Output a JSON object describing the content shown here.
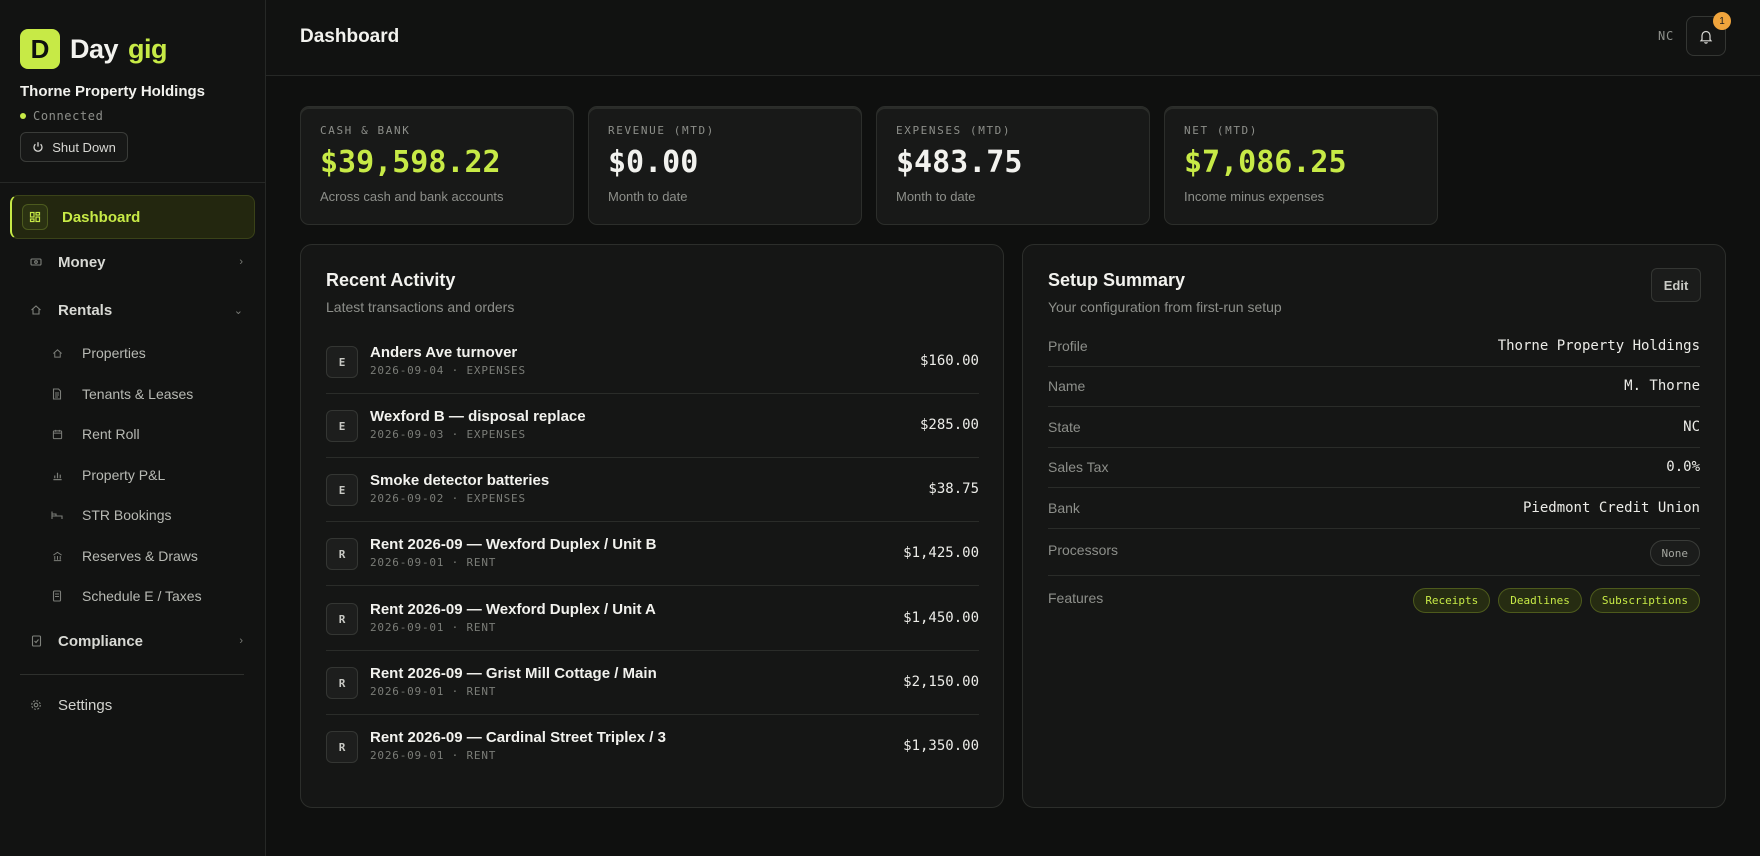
{
  "brand": {
    "logo_letter": "D",
    "name_part1": "Day",
    "name_part2": "gig",
    "accent_color": "#c7ea46"
  },
  "org": {
    "name": "Thorne Property Holdings",
    "status": "Connected",
    "shutdown_label": "Shut Down"
  },
  "nav": {
    "dashboard": "Dashboard",
    "money": "Money",
    "rentals": "Rentals",
    "rentals_children": [
      "Properties",
      "Tenants & Leases",
      "Rent Roll",
      "Property P&L",
      "STR Bookings",
      "Reserves & Draws",
      "Schedule E / Taxes"
    ],
    "compliance": "Compliance",
    "settings": "Settings"
  },
  "header": {
    "title": "Dashboard",
    "state": "NC",
    "notification_count": "1"
  },
  "stats": [
    {
      "label": "CASH & BANK",
      "value": "$39,598.22",
      "sub": "Across cash and bank accounts"
    },
    {
      "label": "REVENUE (MTD)",
      "value": "$0.00",
      "sub": "Month to date"
    },
    {
      "label": "EXPENSES (MTD)",
      "value": "$483.75",
      "sub": "Month to date"
    },
    {
      "label": "NET (MTD)",
      "value": "$7,086.25",
      "sub": "Income minus expenses"
    }
  ],
  "activity": {
    "title": "Recent Activity",
    "subtitle": "Latest transactions and orders",
    "rows": [
      {
        "badge": "E",
        "title": "Anders Ave turnover",
        "meta": "2026-09-04 · EXPENSES",
        "amount": "$160.00"
      },
      {
        "badge": "E",
        "title": "Wexford B — disposal replace",
        "meta": "2026-09-03 · EXPENSES",
        "amount": "$285.00"
      },
      {
        "badge": "E",
        "title": "Smoke detector batteries",
        "meta": "2026-09-02 · EXPENSES",
        "amount": "$38.75"
      },
      {
        "badge": "R",
        "title": "Rent 2026-09 — Wexford Duplex / Unit B",
        "meta": "2026-09-01 · RENT",
        "amount": "$1,425.00"
      },
      {
        "badge": "R",
        "title": "Rent 2026-09 — Wexford Duplex / Unit A",
        "meta": "2026-09-01 · RENT",
        "amount": "$1,450.00"
      },
      {
        "badge": "R",
        "title": "Rent 2026-09 — Grist Mill Cottage / Main",
        "meta": "2026-09-01 · RENT",
        "amount": "$2,150.00"
      },
      {
        "badge": "R",
        "title": "Rent 2026-09 — Cardinal Street Triplex / 3",
        "meta": "2026-09-01 · RENT",
        "amount": "$1,350.00"
      }
    ]
  },
  "setup": {
    "title": "Setup Summary",
    "subtitle": "Your configuration from first-run setup",
    "edit_label": "Edit",
    "rows": [
      {
        "label": "Profile",
        "value": "Thorne Property Holdings"
      },
      {
        "label": "Name",
        "value": "M. Thorne"
      },
      {
        "label": "State",
        "value": "NC"
      },
      {
        "label": "Sales Tax",
        "value": "0.0%"
      },
      {
        "label": "Bank",
        "value": "Piedmont Credit Union"
      }
    ],
    "processors_label": "Processors",
    "processors_value": "None",
    "features_label": "Features",
    "features": [
      "Receipts",
      "Deadlines",
      "Subscriptions"
    ]
  }
}
